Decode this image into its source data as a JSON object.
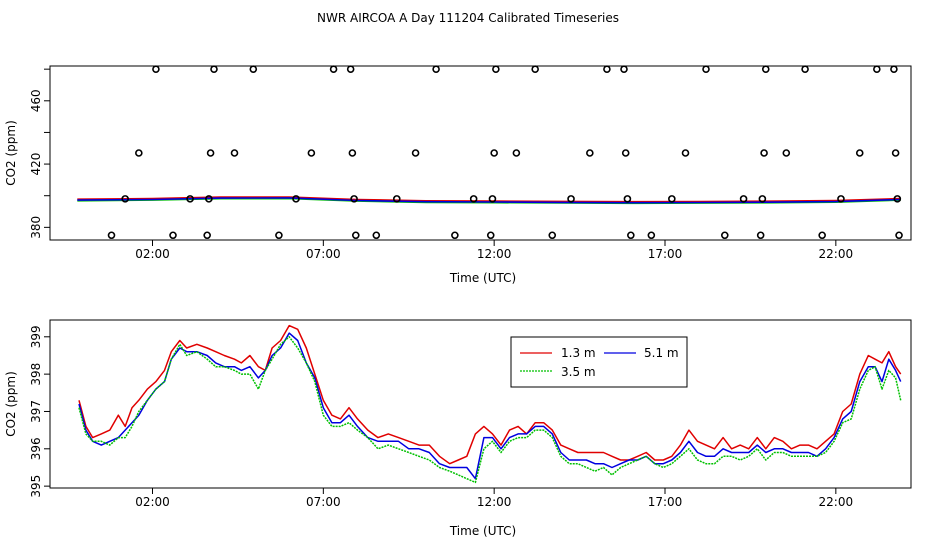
{
  "title": "NWR AIRCOA A  Day 111204  Calibrated Timeseries",
  "chart_data": [
    {
      "type": "scatter",
      "xlabel": "Time (UTC)",
      "ylabel": "CO2 (ppm)",
      "xlim": [
        -1,
        24.2
      ],
      "ylim": [
        372,
        482
      ],
      "xticks": [
        2,
        7,
        12,
        17,
        22
      ],
      "xtick_labels": [
        "02:00",
        "07:00",
        "12:00",
        "17:00",
        "22:00"
      ],
      "yticks": [
        380,
        420,
        460
      ],
      "yaxis_extra_ticks": [
        400,
        440,
        480
      ],
      "grid": false,
      "legend": "none",
      "points": [
        {
          "x": 0.8,
          "y": 375
        },
        {
          "x": 1.2,
          "y": 398
        },
        {
          "x": 1.6,
          "y": 427
        },
        {
          "x": 2.1,
          "y": 480
        },
        {
          "x": 2.6,
          "y": 375
        },
        {
          "x": 3.1,
          "y": 398
        },
        {
          "x": 3.6,
          "y": 375
        },
        {
          "x": 3.65,
          "y": 398
        },
        {
          "x": 3.7,
          "y": 427
        },
        {
          "x": 3.8,
          "y": 480
        },
        {
          "x": 4.4,
          "y": 427
        },
        {
          "x": 4.95,
          "y": 480
        },
        {
          "x": 5.7,
          "y": 375
        },
        {
          "x": 6.2,
          "y": 398
        },
        {
          "x": 6.65,
          "y": 427
        },
        {
          "x": 7.3,
          "y": 480
        },
        {
          "x": 7.8,
          "y": 480
        },
        {
          "x": 7.85,
          "y": 427
        },
        {
          "x": 7.9,
          "y": 398
        },
        {
          "x": 7.95,
          "y": 375
        },
        {
          "x": 8.55,
          "y": 375
        },
        {
          "x": 9.15,
          "y": 398
        },
        {
          "x": 9.7,
          "y": 427
        },
        {
          "x": 10.3,
          "y": 480
        },
        {
          "x": 10.85,
          "y": 375
        },
        {
          "x": 11.4,
          "y": 398
        },
        {
          "x": 11.9,
          "y": 375
        },
        {
          "x": 11.95,
          "y": 398
        },
        {
          "x": 12.0,
          "y": 427
        },
        {
          "x": 12.05,
          "y": 480
        },
        {
          "x": 12.65,
          "y": 427
        },
        {
          "x": 13.2,
          "y": 480
        },
        {
          "x": 13.7,
          "y": 375
        },
        {
          "x": 14.25,
          "y": 398
        },
        {
          "x": 14.8,
          "y": 427
        },
        {
          "x": 15.3,
          "y": 480
        },
        {
          "x": 15.8,
          "y": 480
        },
        {
          "x": 15.85,
          "y": 427
        },
        {
          "x": 15.9,
          "y": 398
        },
        {
          "x": 16.0,
          "y": 375
        },
        {
          "x": 16.6,
          "y": 375
        },
        {
          "x": 17.2,
          "y": 398
        },
        {
          "x": 17.6,
          "y": 427
        },
        {
          "x": 18.2,
          "y": 480
        },
        {
          "x": 18.75,
          "y": 375
        },
        {
          "x": 19.3,
          "y": 398
        },
        {
          "x": 19.8,
          "y": 375
        },
        {
          "x": 19.85,
          "y": 398
        },
        {
          "x": 19.9,
          "y": 427
        },
        {
          "x": 19.95,
          "y": 480
        },
        {
          "x": 20.55,
          "y": 427
        },
        {
          "x": 21.1,
          "y": 480
        },
        {
          "x": 21.6,
          "y": 375
        },
        {
          "x": 22.15,
          "y": 398
        },
        {
          "x": 22.7,
          "y": 427
        },
        {
          "x": 23.2,
          "y": 480
        },
        {
          "x": 23.7,
          "y": 480
        },
        {
          "x": 23.75,
          "y": 427
        },
        {
          "x": 23.8,
          "y": 398
        },
        {
          "x": 23.85,
          "y": 375
        }
      ],
      "series_colors": [
        "#e00000",
        "#00c000",
        "#0000e0"
      ],
      "series_line_samples": [
        {
          "x": [
            -0.2,
            2,
            4,
            6,
            8,
            10,
            12,
            14,
            16,
            18,
            20,
            22,
            23.9
          ],
          "y": [
            397.2,
            397.6,
            398.5,
            398.6,
            397,
            396.2,
            396,
            395.8,
            395.6,
            395.7,
            395.9,
            396.3,
            397.6
          ]
        }
      ]
    },
    {
      "type": "line",
      "xlabel": "Time (UTC)",
      "ylabel": "CO2 (ppm)",
      "xlim": [
        -1,
        24.2
      ],
      "ylim": [
        394.95,
        399.45
      ],
      "xticks": [
        2,
        7,
        12,
        17,
        22
      ],
      "xtick_labels": [
        "02:00",
        "07:00",
        "12:00",
        "17:00",
        "22:00"
      ],
      "yticks": [
        395,
        396,
        397,
        398,
        399
      ],
      "grid": false,
      "legend": "top-center",
      "legend_order": [
        0,
        2,
        1
      ],
      "x": [
        -0.15,
        0.05,
        0.25,
        0.5,
        0.75,
        1.0,
        1.2,
        1.4,
        1.6,
        1.85,
        2.1,
        2.35,
        2.55,
        2.8,
        3.0,
        3.3,
        3.6,
        3.85,
        4.1,
        4.4,
        4.6,
        4.85,
        5.1,
        5.3,
        5.5,
        5.75,
        6.0,
        6.25,
        6.5,
        6.75,
        7.0,
        7.25,
        7.5,
        7.75,
        8.0,
        8.3,
        8.6,
        8.9,
        9.2,
        9.5,
        9.8,
        10.1,
        10.4,
        10.7,
        10.95,
        11.2,
        11.45,
        11.7,
        11.95,
        12.2,
        12.45,
        12.7,
        12.95,
        13.2,
        13.45,
        13.7,
        13.95,
        14.2,
        14.45,
        14.7,
        14.95,
        15.2,
        15.45,
        15.7,
        15.95,
        16.2,
        16.45,
        16.7,
        16.95,
        17.2,
        17.45,
        17.7,
        17.95,
        18.2,
        18.45,
        18.7,
        18.95,
        19.2,
        19.45,
        19.7,
        19.95,
        20.2,
        20.45,
        20.7,
        20.95,
        21.2,
        21.45,
        21.7,
        21.95,
        22.2,
        22.45,
        22.7,
        22.95,
        23.15,
        23.35,
        23.55,
        23.75,
        23.9
      ],
      "series": [
        {
          "name": "1.3 m",
          "values": [
            397.3,
            396.6,
            396.3,
            396.4,
            396.5,
            396.9,
            396.6,
            397.1,
            397.3,
            397.6,
            397.8,
            398.1,
            398.6,
            398.9,
            398.7,
            398.8,
            398.7,
            398.6,
            398.5,
            398.4,
            398.3,
            398.5,
            398.2,
            398.1,
            398.7,
            398.9,
            399.3,
            399.2,
            398.7,
            398.0,
            397.3,
            396.9,
            396.8,
            397.1,
            396.8,
            396.5,
            396.3,
            396.4,
            396.3,
            396.2,
            396.1,
            396.1,
            395.8,
            395.6,
            395.7,
            395.8,
            396.4,
            396.6,
            396.4,
            396.1,
            396.5,
            396.6,
            396.4,
            396.7,
            396.7,
            396.5,
            396.1,
            396.0,
            395.9,
            395.9,
            395.9,
            395.9,
            395.8,
            395.7,
            395.7,
            395.8,
            395.9,
            395.7,
            395.7,
            395.8,
            396.1,
            396.5,
            396.2,
            396.1,
            396.0,
            396.3,
            396.0,
            396.1,
            396.0,
            396.3,
            396.0,
            396.3,
            396.2,
            396.0,
            396.1,
            396.1,
            396.0,
            396.2,
            396.4,
            397.0,
            397.2,
            398.0,
            398.5,
            398.4,
            398.3,
            398.6,
            398.2,
            398.0
          ]
        },
        {
          "name": "3.5 m",
          "values": [
            397.1,
            396.4,
            396.2,
            396.2,
            396.1,
            396.3,
            396.3,
            396.6,
            397.0,
            397.3,
            397.6,
            397.8,
            398.4,
            398.8,
            398.5,
            398.6,
            398.4,
            398.2,
            398.2,
            398.1,
            398.0,
            398.0,
            397.6,
            398.1,
            398.4,
            398.8,
            399.0,
            398.7,
            398.3,
            397.8,
            396.9,
            396.6,
            396.6,
            396.7,
            396.5,
            396.3,
            396.0,
            396.1,
            396.0,
            395.9,
            395.8,
            395.7,
            395.5,
            395.4,
            395.3,
            395.2,
            395.1,
            396.0,
            396.2,
            395.9,
            396.2,
            396.3,
            396.3,
            396.5,
            396.5,
            396.3,
            395.8,
            395.6,
            395.6,
            395.5,
            395.4,
            395.5,
            395.3,
            395.5,
            395.6,
            395.7,
            395.8,
            395.6,
            395.5,
            395.6,
            395.8,
            396.0,
            395.7,
            395.6,
            395.6,
            395.8,
            395.8,
            395.7,
            395.8,
            396.0,
            395.7,
            395.9,
            395.9,
            395.8,
            395.8,
            395.8,
            395.8,
            395.9,
            396.2,
            396.7,
            396.8,
            397.6,
            398.1,
            398.2,
            397.6,
            398.1,
            397.9,
            397.3
          ]
        },
        {
          "name": "5.1 m",
          "values": [
            397.2,
            396.5,
            396.2,
            396.1,
            396.2,
            396.3,
            396.5,
            396.7,
            396.9,
            397.3,
            397.6,
            397.8,
            398.4,
            398.7,
            398.6,
            398.6,
            398.5,
            398.3,
            398.2,
            398.2,
            398.1,
            398.2,
            397.9,
            398.1,
            398.5,
            398.7,
            399.1,
            398.9,
            398.3,
            397.9,
            397.1,
            396.7,
            396.7,
            396.9,
            396.6,
            396.3,
            396.2,
            396.2,
            396.2,
            396.0,
            396.0,
            395.9,
            395.6,
            395.5,
            395.5,
            395.5,
            395.2,
            396.3,
            396.3,
            396.0,
            396.3,
            396.4,
            396.4,
            396.6,
            396.6,
            396.4,
            395.9,
            395.7,
            395.7,
            395.7,
            395.6,
            395.6,
            395.5,
            395.6,
            395.7,
            395.7,
            395.8,
            395.6,
            395.6,
            395.7,
            395.9,
            396.2,
            395.9,
            395.8,
            395.8,
            396.0,
            395.9,
            395.9,
            395.9,
            396.1,
            395.9,
            396.0,
            396.0,
            395.9,
            395.9,
            395.9,
            395.8,
            396.0,
            396.3,
            396.8,
            397.0,
            397.8,
            398.2,
            398.2,
            397.8,
            398.4,
            398.1,
            397.8
          ]
        }
      ]
    }
  ]
}
